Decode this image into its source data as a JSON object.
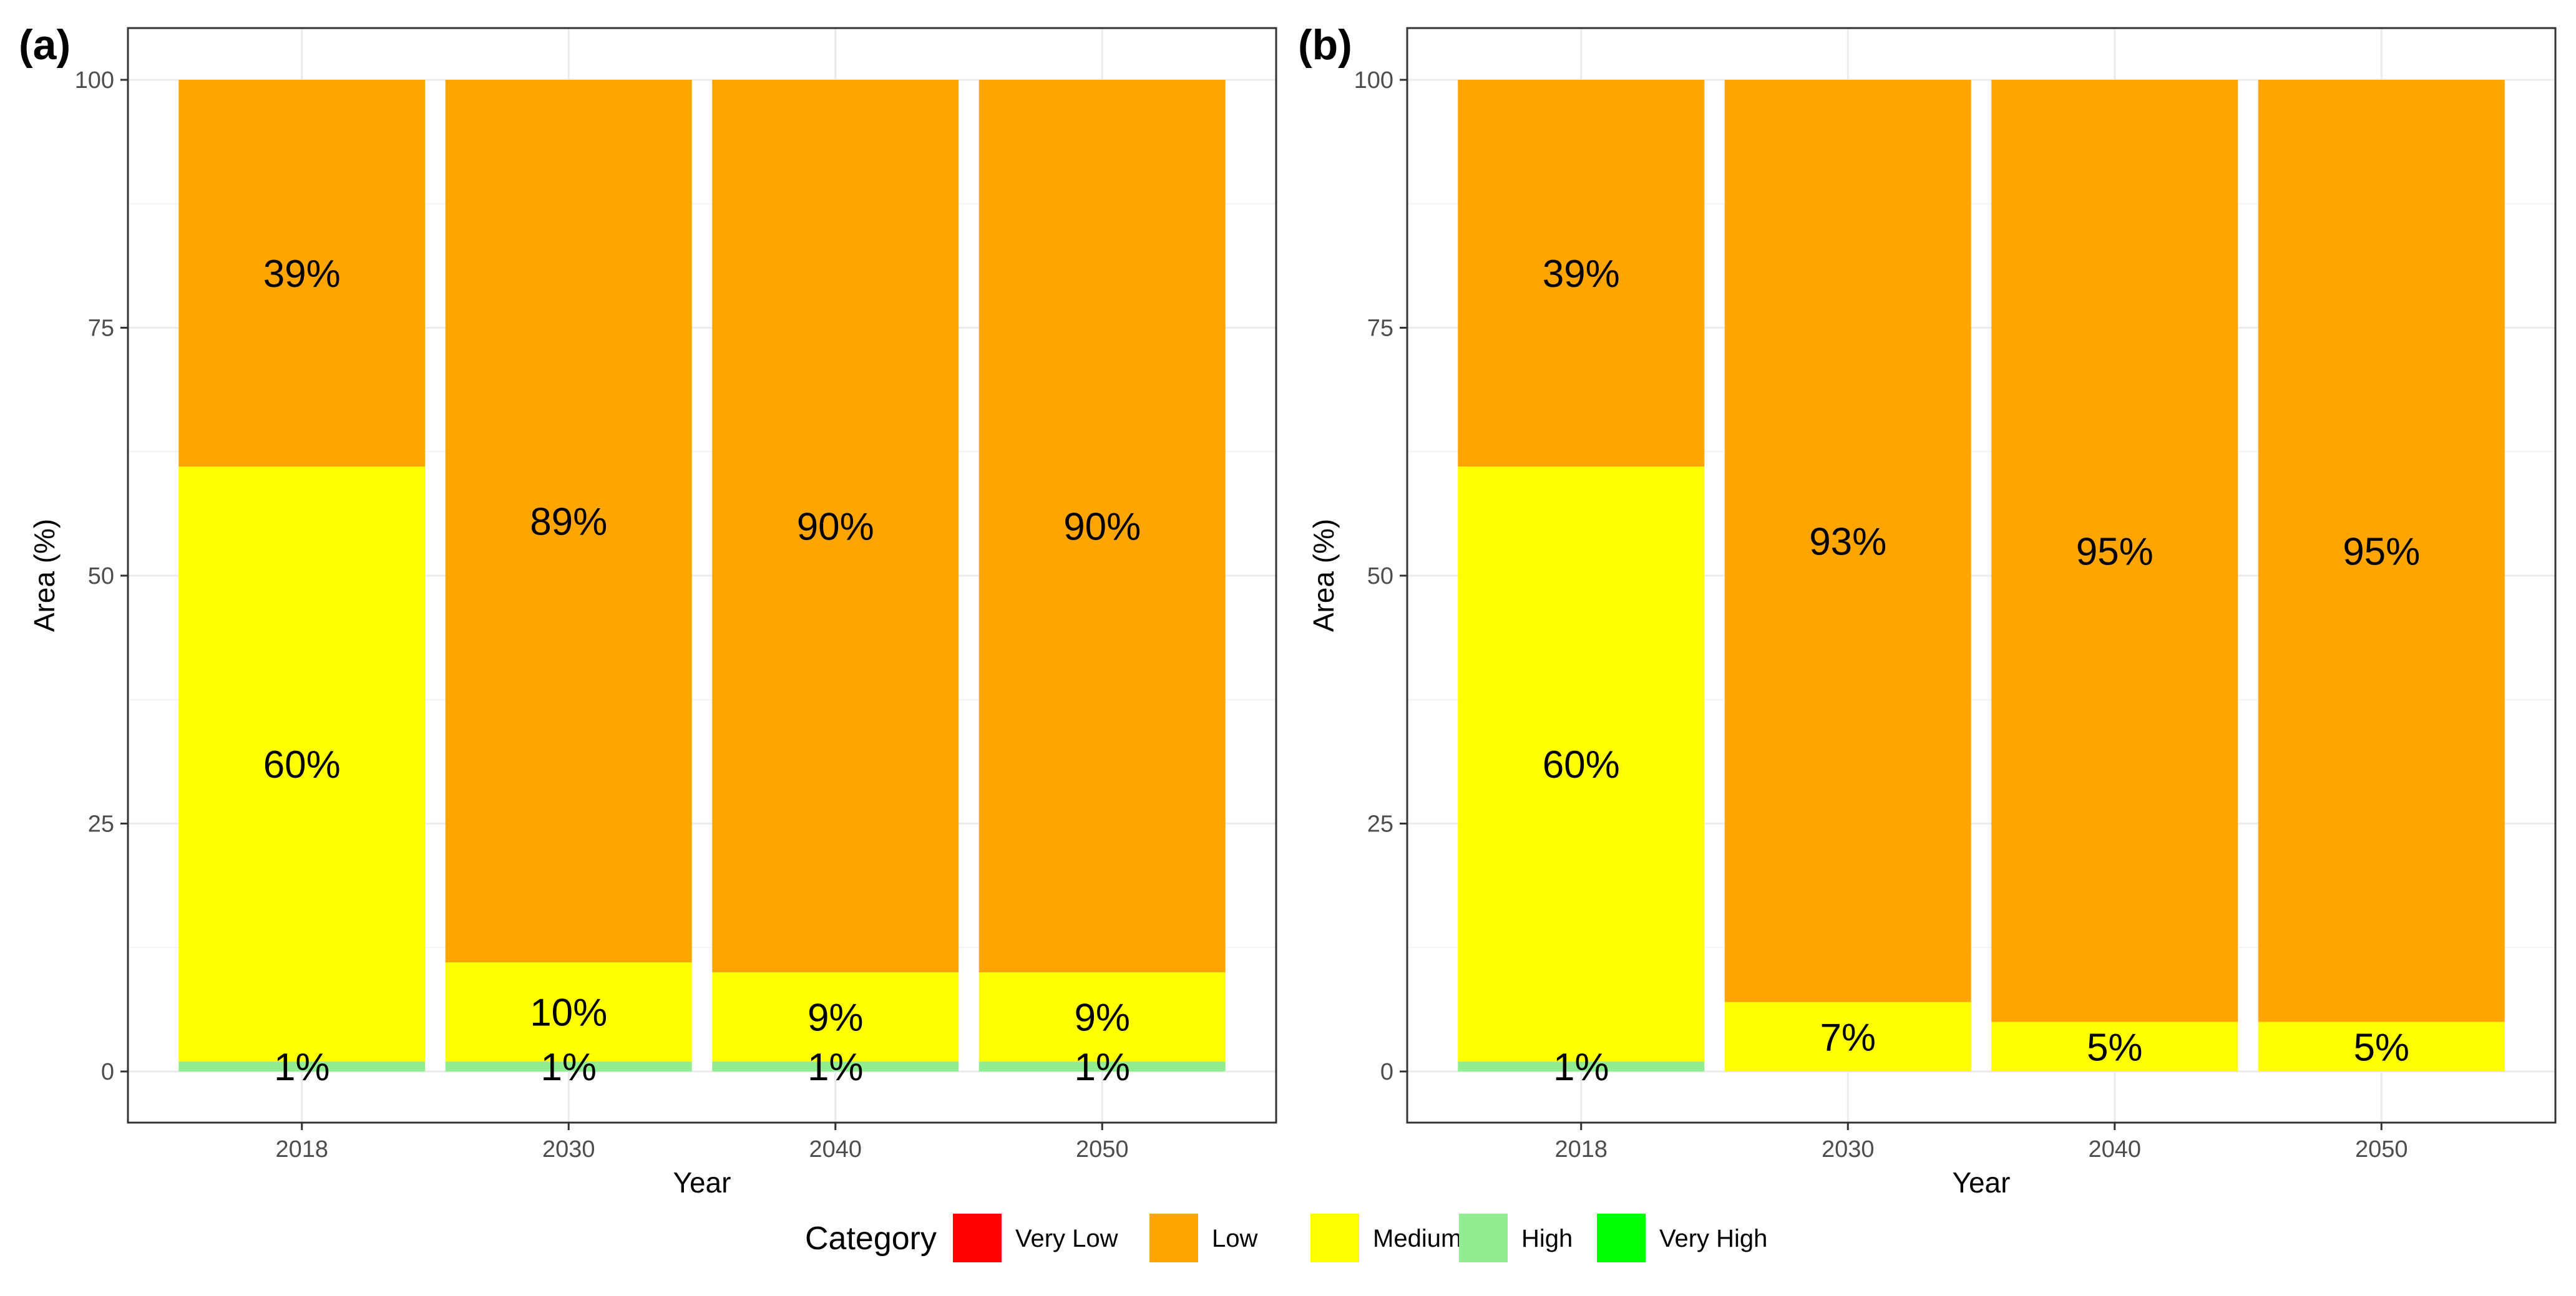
{
  "legend": {
    "title": "Category",
    "entries": [
      {
        "name": "Very Low",
        "color": "#ff0000"
      },
      {
        "name": "Low",
        "color": "#ffa500"
      },
      {
        "name": "Medium",
        "color": "#ffff00"
      },
      {
        "name": "High",
        "color": "#90ee90"
      },
      {
        "name": "Very High",
        "color": "#00ff00"
      }
    ]
  },
  "chart_data": [
    {
      "panel": "(a)",
      "type": "bar",
      "stacked": true,
      "xlabel": "Year",
      "ylabel": "Area (%)",
      "ylim": [
        0,
        100
      ],
      "yticks": [
        "0",
        "25",
        "50",
        "75",
        "100"
      ],
      "categories": [
        "2018",
        "2030",
        "2040",
        "2050"
      ],
      "series": [
        {
          "name": "High",
          "color": "#90ee90",
          "values": [
            1,
            1,
            1,
            1
          ],
          "labels": [
            "1%",
            "1%",
            "1%",
            "1%"
          ]
        },
        {
          "name": "Medium",
          "color": "#ffff00",
          "values": [
            60,
            10,
            9,
            9
          ],
          "labels": [
            "60%",
            "10%",
            "9%",
            "9%"
          ]
        },
        {
          "name": "Low",
          "color": "#ffa500",
          "values": [
            39,
            89,
            90,
            90
          ],
          "labels": [
            "39%",
            "89%",
            "90%",
            "90%"
          ]
        }
      ]
    },
    {
      "panel": "(b)",
      "type": "bar",
      "stacked": true,
      "xlabel": "Year",
      "ylabel": "Area (%)",
      "ylim": [
        0,
        100
      ],
      "yticks": [
        "0",
        "25",
        "50",
        "75",
        "100"
      ],
      "categories": [
        "2018",
        "2030",
        "2040",
        "2050"
      ],
      "series": [
        {
          "name": "High",
          "color": "#90ee90",
          "values": [
            1,
            0,
            0,
            0
          ],
          "labels": [
            "1%",
            "",
            "",
            ""
          ]
        },
        {
          "name": "Medium",
          "color": "#ffff00",
          "values": [
            60,
            7,
            5,
            5
          ],
          "labels": [
            "60%",
            "7%",
            "5%",
            "5%"
          ]
        },
        {
          "name": "Low",
          "color": "#ffa500",
          "values": [
            39,
            93,
            95,
            95
          ],
          "labels": [
            "39%",
            "93%",
            "95%",
            "95%"
          ]
        }
      ]
    }
  ]
}
